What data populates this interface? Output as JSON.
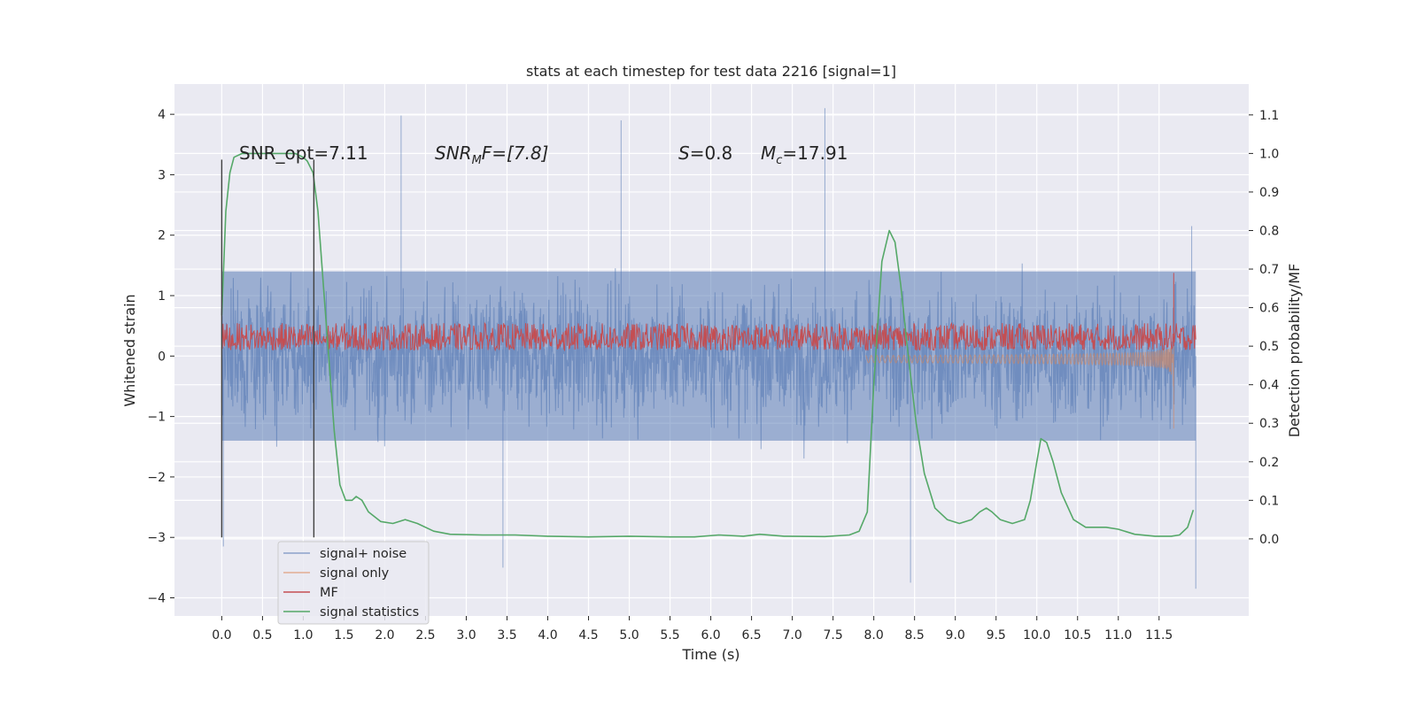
{
  "chart_data": {
    "type": "line",
    "title": "stats at each timestep for test data 2216 [signal=1]",
    "xlabel": "Time (s)",
    "ylabel_left": "Whitened strain",
    "ylabel_right": "Detection probability/MF",
    "xlim": [
      -0.58,
      12.6
    ],
    "ylim_left": [
      -4.3,
      4.5
    ],
    "ylim_right": [
      -0.2,
      1.18
    ],
    "x_ticks": [
      "0.0",
      "0.5",
      "1.0",
      "1.5",
      "2.0",
      "2.5",
      "3.0",
      "3.5",
      "4.0",
      "4.5",
      "5.0",
      "5.5",
      "6.0",
      "6.5",
      "7.0",
      "7.5",
      "8.0",
      "8.5",
      "9.0",
      "9.5",
      "10.0",
      "10.5",
      "11.0",
      "11.5"
    ],
    "y_left_ticks": [
      "4",
      "3",
      "2",
      "1",
      "0",
      "−1",
      "−2",
      "−3",
      "−4"
    ],
    "y_right_ticks": [
      "1.1",
      "1.0",
      "0.9",
      "0.8",
      "0.7",
      "0.6",
      "0.5",
      "0.4",
      "0.3",
      "0.2",
      "0.1",
      "0.0"
    ],
    "grid": true,
    "legend_position": "lower-left",
    "annotations": {
      "snr_opt": "SNR_opt=7.11",
      "snr_mf_prefix": "SNR",
      "snr_mf_sub": "M",
      "snr_mf_suffix": "F=[7.8]",
      "s_prefix": "S",
      "s_value": "=0.8",
      "mc_prefix": "M",
      "mc_sub": "c",
      "mc_value": "=17.91"
    },
    "vlines_x": [
      0.0,
      1.13
    ],
    "series": [
      {
        "name": "signal+ noise",
        "color": "#4c72b0",
        "axis": "left",
        "band": [
          -1.4,
          1.4
        ],
        "peaks_high": [
          [
            2.2,
            3.98
          ],
          [
            4.9,
            3.9
          ],
          [
            7.4,
            4.1
          ],
          [
            11.9,
            2.15
          ]
        ],
        "peaks_low": [
          [
            0.02,
            -3.15
          ],
          [
            3.45,
            -3.5
          ],
          [
            8.45,
            -3.75
          ],
          [
            11.95,
            -3.85
          ]
        ]
      },
      {
        "name": "signal only",
        "color": "#dd8452",
        "axis": "left",
        "points": [
          [
            7.9,
            0.0
          ],
          [
            9.0,
            -0.05
          ],
          [
            10.0,
            -0.12
          ],
          [
            11.0,
            -0.3
          ],
          [
            11.5,
            -0.55
          ],
          [
            11.65,
            -1.2
          ],
          [
            11.68,
            1.25
          ],
          [
            11.72,
            0.0
          ]
        ]
      },
      {
        "name": "MF",
        "color": "#c44e52",
        "axis": "right",
        "mean": 0.5,
        "range": [
          0.49,
          0.56
        ],
        "spike": [
          11.68,
          0.69
        ]
      },
      {
        "name": "signal statistics",
        "color": "#55a868",
        "axis": "right",
        "points": [
          [
            0.0,
            0.58
          ],
          [
            0.05,
            0.85
          ],
          [
            0.1,
            0.95
          ],
          [
            0.15,
            0.99
          ],
          [
            0.25,
            1.0
          ],
          [
            0.5,
            1.0
          ],
          [
            0.9,
            1.0
          ],
          [
            1.0,
            0.99
          ],
          [
            1.05,
            0.98
          ],
          [
            1.12,
            0.95
          ],
          [
            1.18,
            0.85
          ],
          [
            1.25,
            0.65
          ],
          [
            1.32,
            0.45
          ],
          [
            1.38,
            0.28
          ],
          [
            1.45,
            0.14
          ],
          [
            1.52,
            0.1
          ],
          [
            1.6,
            0.1
          ],
          [
            1.65,
            0.11
          ],
          [
            1.72,
            0.1
          ],
          [
            1.8,
            0.07
          ],
          [
            1.95,
            0.045
          ],
          [
            2.1,
            0.04
          ],
          [
            2.25,
            0.05
          ],
          [
            2.4,
            0.04
          ],
          [
            2.6,
            0.02
          ],
          [
            2.8,
            0.012
          ],
          [
            3.2,
            0.01
          ],
          [
            3.6,
            0.01
          ],
          [
            4.0,
            0.007
          ],
          [
            4.5,
            0.005
          ],
          [
            5.0,
            0.007
          ],
          [
            5.5,
            0.005
          ],
          [
            5.8,
            0.005
          ],
          [
            6.1,
            0.01
          ],
          [
            6.4,
            0.007
          ],
          [
            6.6,
            0.012
          ],
          [
            6.9,
            0.007
          ],
          [
            7.4,
            0.006
          ],
          [
            7.7,
            0.01
          ],
          [
            7.82,
            0.02
          ],
          [
            7.92,
            0.07
          ],
          [
            8.0,
            0.4
          ],
          [
            8.1,
            0.72
          ],
          [
            8.19,
            0.8
          ],
          [
            8.26,
            0.77
          ],
          [
            8.33,
            0.66
          ],
          [
            8.42,
            0.48
          ],
          [
            8.52,
            0.3
          ],
          [
            8.62,
            0.17
          ],
          [
            8.75,
            0.08
          ],
          [
            8.9,
            0.05
          ],
          [
            9.05,
            0.04
          ],
          [
            9.2,
            0.05
          ],
          [
            9.3,
            0.07
          ],
          [
            9.38,
            0.08
          ],
          [
            9.45,
            0.07
          ],
          [
            9.55,
            0.05
          ],
          [
            9.7,
            0.04
          ],
          [
            9.85,
            0.05
          ],
          [
            9.92,
            0.1
          ],
          [
            10.0,
            0.2
          ],
          [
            10.05,
            0.26
          ],
          [
            10.12,
            0.25
          ],
          [
            10.2,
            0.2
          ],
          [
            10.3,
            0.12
          ],
          [
            10.45,
            0.05
          ],
          [
            10.6,
            0.03
          ],
          [
            10.85,
            0.03
          ],
          [
            11.0,
            0.025
          ],
          [
            11.2,
            0.012
          ],
          [
            11.45,
            0.007
          ],
          [
            11.65,
            0.007
          ],
          [
            11.75,
            0.01
          ],
          [
            11.85,
            0.03
          ],
          [
            11.92,
            0.075
          ]
        ]
      }
    ]
  }
}
